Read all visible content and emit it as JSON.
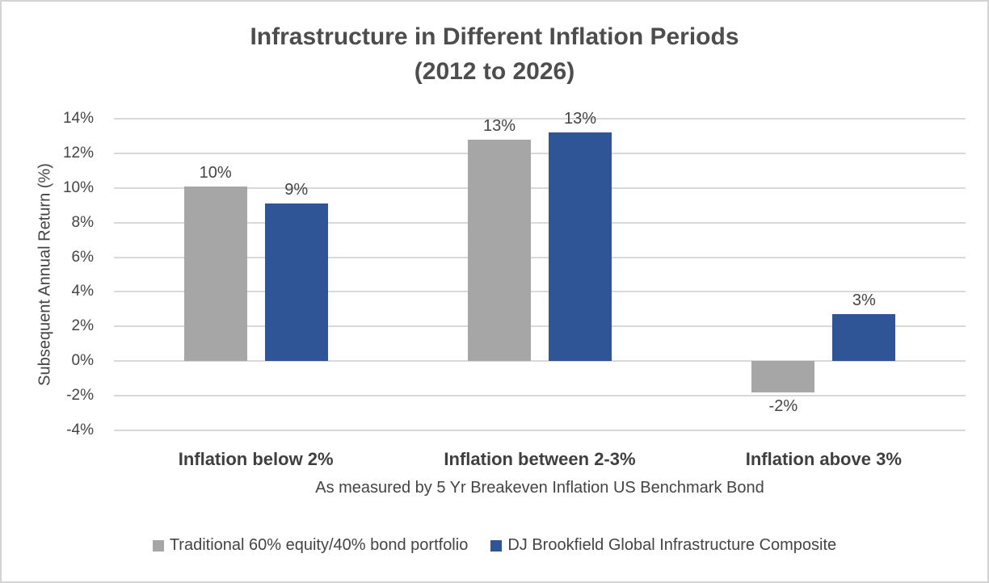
{
  "title": {
    "line1": "Infrastructure in Different Inflation Periods",
    "line2": "(2012 to 2026)"
  },
  "chart_data": {
    "type": "bar",
    "title": "Infrastructure in Different Inflation Periods (2012 to 2026)",
    "categories": [
      "Inflation below 2%",
      "Inflation between 2-3%",
      "Inflation above 3%"
    ],
    "series": [
      {
        "name": "Traditional 60% equity/40% bond portfolio",
        "color": "#A6A6A6",
        "values": [
          10.1,
          12.8,
          -1.8
        ],
        "data_labels": [
          "10%",
          "13%",
          "-2%"
        ]
      },
      {
        "name": "DJ Brookfield Global Infrastructure Composite",
        "color": "#2F5597",
        "values": [
          9.1,
          13.2,
          2.7
        ],
        "data_labels": [
          "9%",
          "13%",
          "3%"
        ]
      }
    ],
    "ylabel": "Subsequent Annual Return (%)",
    "xlabel": "As measured by 5 Yr Breakeven Inflation US Benchmark Bond",
    "ylim": [
      -4,
      14
    ],
    "ytick_step": 2,
    "yticks": [
      "14%",
      "12%",
      "10%",
      "8%",
      "6%",
      "4%",
      "2%",
      "0%",
      "-2%",
      "-4%"
    ],
    "grid": true,
    "legend_position": "bottom"
  }
}
